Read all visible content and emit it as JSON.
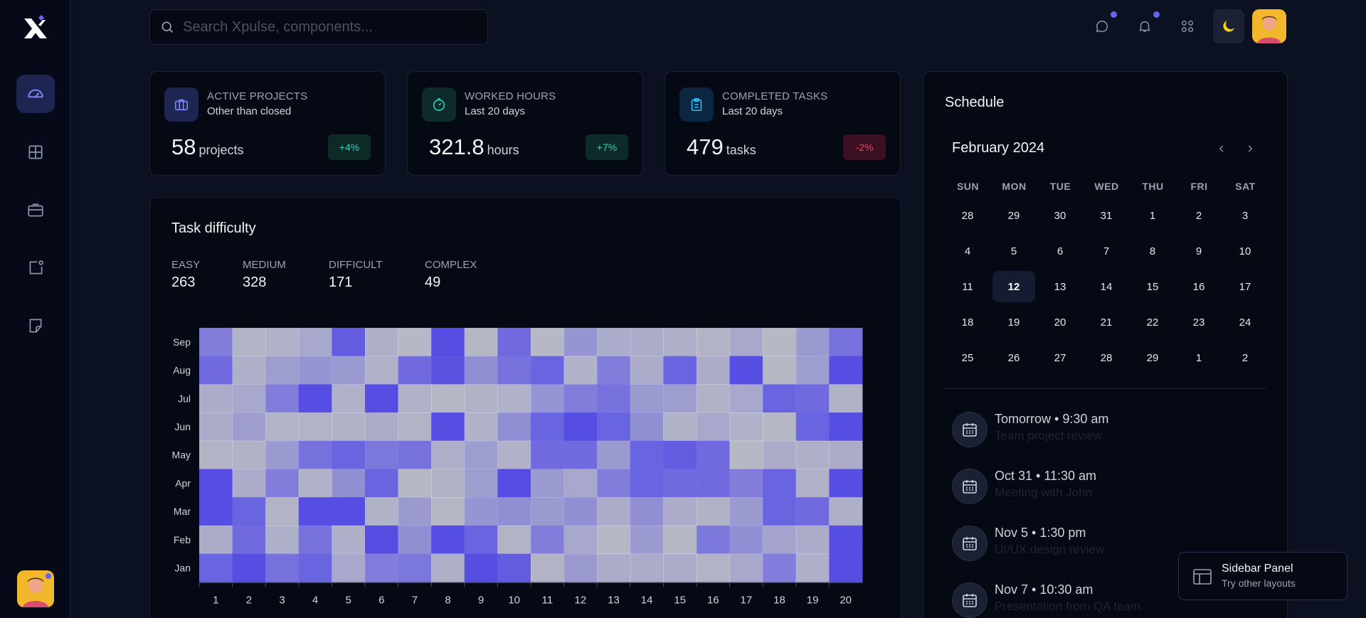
{
  "search": {
    "placeholder": "Search Xpulse, components..."
  },
  "rail": {
    "items": [
      "dashboard",
      "grid",
      "briefcase",
      "notification-square",
      "sticky-note"
    ]
  },
  "stats": [
    {
      "title": "ACTIVE PROJECTS",
      "subtitle": "Other than closed",
      "value": "58",
      "unit": "projects",
      "badge": "+4%",
      "trend": "up",
      "color": "#6366f1",
      "icon": "briefcase-icon"
    },
    {
      "title": "WORKED HOURS",
      "subtitle": "Last 20 days",
      "value": "321.8",
      "unit": "hours",
      "badge": "+7%",
      "trend": "up",
      "color": "#14b8a6",
      "icon": "stopwatch-icon"
    },
    {
      "title": "COMPLETED TASKS",
      "subtitle": "Last 20 days",
      "value": "479",
      "unit": "tasks",
      "badge": "-2%",
      "trend": "down",
      "color": "#0ea5e9",
      "icon": "clipboard-icon"
    }
  ],
  "task_difficulty": {
    "title": "Task difficulty",
    "levels": [
      {
        "label": "EASY",
        "value": "263"
      },
      {
        "label": "MEDIUM",
        "value": "328"
      },
      {
        "label": "DIFFICULT",
        "value": "171"
      },
      {
        "label": "COMPLEX",
        "value": "49"
      }
    ]
  },
  "chart_data": {
    "type": "heatmap",
    "x": [
      "1",
      "2",
      "3",
      "4",
      "5",
      "6",
      "7",
      "8",
      "9",
      "10",
      "11",
      "12",
      "13",
      "14",
      "15",
      "16",
      "17",
      "18",
      "19",
      "20"
    ],
    "y": [
      "Sep",
      "Aug",
      "Jul",
      "Jun",
      "May",
      "Apr",
      "Mar",
      "Feb",
      "Jan"
    ],
    "values": [
      [
        0.6,
        0.05,
        0.1,
        0.2,
        0.85,
        0.12,
        0.02,
        0.95,
        0.03,
        0.75,
        0.02,
        0.4,
        0.18,
        0.15,
        0.12,
        0.05,
        0.2,
        0.02,
        0.35,
        0.7
      ],
      [
        0.75,
        0.12,
        0.3,
        0.4,
        0.35,
        0.1,
        0.75,
        0.9,
        0.45,
        0.7,
        0.8,
        0.1,
        0.6,
        0.15,
        0.8,
        0.15,
        0.95,
        0.03,
        0.3,
        0.95
      ],
      [
        0.15,
        0.2,
        0.6,
        0.95,
        0.1,
        0.95,
        0.1,
        0.03,
        0.08,
        0.1,
        0.4,
        0.6,
        0.7,
        0.35,
        0.3,
        0.08,
        0.2,
        0.8,
        0.75,
        0.08
      ],
      [
        0.15,
        0.3,
        0.05,
        0.05,
        0.08,
        0.15,
        0.05,
        0.95,
        0.1,
        0.45,
        0.8,
        0.95,
        0.8,
        0.45,
        0.08,
        0.2,
        0.1,
        0.03,
        0.8,
        0.95
      ],
      [
        0.05,
        0.08,
        0.35,
        0.7,
        0.8,
        0.65,
        0.7,
        0.12,
        0.3,
        0.1,
        0.75,
        0.75,
        0.35,
        0.8,
        0.85,
        0.75,
        0.03,
        0.15,
        0.12,
        0.15
      ],
      [
        0.95,
        0.15,
        0.6,
        0.1,
        0.45,
        0.8,
        0.03,
        0.08,
        0.3,
        0.95,
        0.35,
        0.2,
        0.6,
        0.8,
        0.75,
        0.75,
        0.6,
        0.8,
        0.1,
        0.95
      ],
      [
        0.95,
        0.8,
        0.05,
        0.95,
        0.95,
        0.08,
        0.35,
        0.03,
        0.4,
        0.45,
        0.35,
        0.45,
        0.15,
        0.45,
        0.15,
        0.08,
        0.35,
        0.8,
        0.75,
        0.12
      ],
      [
        0.15,
        0.75,
        0.12,
        0.7,
        0.12,
        0.95,
        0.45,
        0.95,
        0.8,
        0.05,
        0.6,
        0.2,
        0.03,
        0.35,
        0.03,
        0.65,
        0.45,
        0.25,
        0.15,
        0.95
      ],
      [
        0.8,
        0.95,
        0.7,
        0.8,
        0.2,
        0.6,
        0.65,
        0.12,
        0.95,
        0.85,
        0.05,
        0.35,
        0.15,
        0.15,
        0.15,
        0.05,
        0.2,
        0.6,
        0.12,
        0.95
      ]
    ]
  },
  "schedule": {
    "title": "Schedule",
    "month": "February 2024",
    "weekdays": [
      "SUN",
      "MON",
      "TUE",
      "WED",
      "THU",
      "FRI",
      "SAT"
    ],
    "days": [
      [
        "28",
        "29",
        "30",
        "31",
        "1",
        "2",
        "3"
      ],
      [
        "4",
        "5",
        "6",
        "7",
        "8",
        "9",
        "10"
      ],
      [
        "11",
        "12",
        "13",
        "14",
        "15",
        "16",
        "17"
      ],
      [
        "18",
        "19",
        "20",
        "21",
        "22",
        "23",
        "24"
      ],
      [
        "25",
        "26",
        "27",
        "28",
        "29",
        "1",
        "2"
      ]
    ],
    "today": "12",
    "events": [
      {
        "time": "Tomorrow • 9:30 am",
        "title": "Team project review"
      },
      {
        "time": "Oct 31 • 11:30 am",
        "title": "Meeting with John"
      },
      {
        "time": "Nov 5 • 1:30 pm",
        "title": "UI/UX design review"
      },
      {
        "time": "Nov 7 • 10:30 am",
        "title": "Presentation from QA team"
      }
    ]
  },
  "sidebar_panel": {
    "title": "Sidebar Panel",
    "subtitle": "Try other layouts"
  }
}
